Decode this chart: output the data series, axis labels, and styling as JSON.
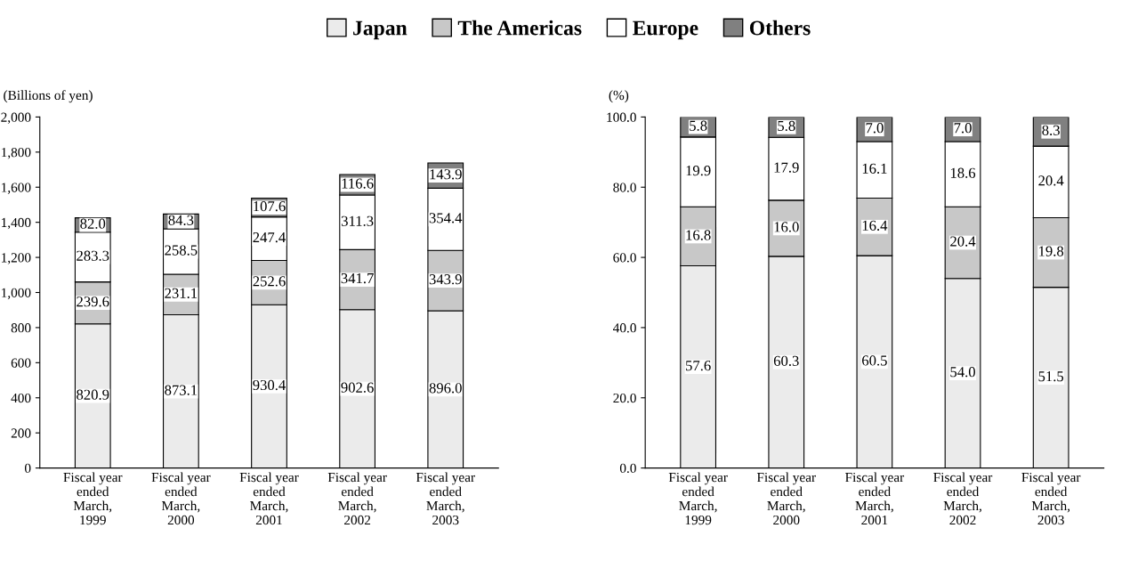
{
  "chart_data": [
    {
      "type": "bar",
      "stacked": true,
      "ylabel": "(Billions of yen)",
      "legend": "top",
      "grid": false,
      "data_labels": true,
      "categories": [
        "Fiscal year\nended\nMarch,\n1999",
        "Fiscal year\nended\nMarch,\n2000",
        "Fiscal year\nended\nMarch,\n2001",
        "Fiscal year\nended\nMarch,\n2002",
        "Fiscal year\nended\nMarch,\n2003"
      ],
      "ylim": [
        0,
        2000
      ],
      "yticks": [
        0,
        200,
        400,
        600,
        800,
        {
          "value": 1000,
          "label": "1,000"
        },
        {
          "value": 1200,
          "label": "1,200"
        },
        {
          "value": 1400,
          "label": "1,400"
        },
        {
          "value": 1600,
          "label": "1,600"
        },
        {
          "value": 1800,
          "label": "1,800"
        },
        {
          "value": 2000,
          "label": "2,000"
        }
      ],
      "series": [
        {
          "name": "Japan",
          "color": "#ebebeb",
          "values": [
            820.9,
            873.1,
            930.4,
            902.6,
            896.0
          ],
          "value_labels": [
            "820.9",
            "873.1",
            "930.4",
            "902.6",
            "896.0"
          ]
        },
        {
          "name": "The Americas",
          "color": "#c8c8c8",
          "values": [
            239.6,
            231.1,
            252.6,
            341.7,
            343.9
          ],
          "value_labels": [
            "239.6",
            "231.1",
            "252.6",
            "341.7",
            "343.9"
          ]
        },
        {
          "name": "Europe",
          "color": "#ffffff",
          "values": [
            283.3,
            258.5,
            247.4,
            311.3,
            354.4
          ],
          "value_labels": [
            "283.3",
            "258.5",
            "247.4",
            "311.3",
            "354.4"
          ]
        },
        {
          "name": "Others",
          "color": "#808080",
          "values": [
            82.0,
            84.3,
            107.6,
            116.6,
            143.9
          ],
          "value_labels": [
            "82.0",
            "84.3",
            "107.6",
            "116.6",
            "143.9"
          ]
        }
      ]
    },
    {
      "type": "bar",
      "stacked": true,
      "ylabel": "(%)",
      "grid": false,
      "data_labels": true,
      "categories": [
        "Fiscal year\nended\nMarch,\n1999",
        "Fiscal year\nended\nMarch,\n2000",
        "Fiscal year\nended\nMarch,\n2001",
        "Fiscal year\nended\nMarch,\n2002",
        "Fiscal year\nended\nMarch,\n2003"
      ],
      "ylim": [
        0,
        100
      ],
      "yticks": [
        {
          "value": 0,
          "label": "0.0"
        },
        {
          "value": 20,
          "label": "20.0"
        },
        {
          "value": 40,
          "label": "40.0"
        },
        {
          "value": 60,
          "label": "60.0"
        },
        {
          "value": 80,
          "label": "80.0"
        },
        {
          "value": 100,
          "label": "100.0"
        }
      ],
      "series": [
        {
          "color": "#ebebeb",
          "values": [
            57.6,
            60.3,
            60.5,
            54.0,
            51.5
          ],
          "value_labels": [
            "57.6",
            "60.3",
            "60.5",
            "54.0",
            "51.5"
          ]
        },
        {
          "color": "#c8c8c8",
          "values": [
            16.8,
            16.0,
            16.4,
            20.4,
            19.8
          ],
          "value_labels": [
            "16.8",
            "16.0",
            "16.4",
            "20.4",
            "19.8"
          ]
        },
        {
          "color": "#ffffff",
          "values": [
            19.9,
            17.9,
            16.1,
            18.6,
            20.4
          ],
          "value_labels": [
            "19.9",
            "17.9",
            "16.1",
            "18.6",
            "20.4"
          ]
        },
        {
          "color": "#808080",
          "values": [
            5.8,
            5.8,
            7.0,
            7.0,
            8.3
          ],
          "value_labels": [
            "5.8",
            "5.8",
            "7.0",
            "7.0",
            "8.3"
          ]
        }
      ]
    }
  ]
}
